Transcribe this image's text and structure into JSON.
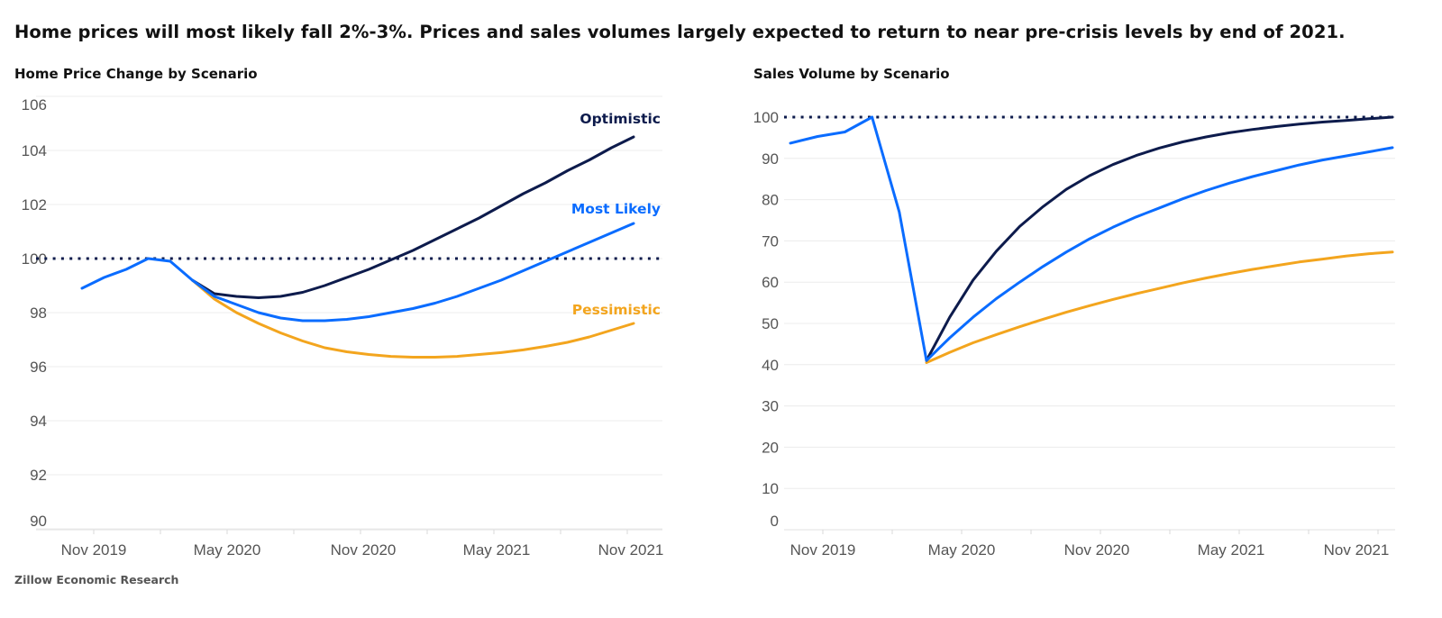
{
  "headline": "Home prices will most likely fall 2%-3%. Prices and sales volumes largely expected to return to near pre-crisis levels by end of 2021.",
  "footer": "Zillow Economic Research",
  "colors": {
    "optimistic": "#0d1b4c",
    "most_likely": "#0a6cff",
    "pessimistic": "#f3a51e",
    "reference_line": "#0d1b4c",
    "grid": "#ececec"
  },
  "chart_data": [
    {
      "type": "line",
      "title": "Home Price Change by Scenario",
      "xlabel": "",
      "ylabel": "",
      "ylim": [
        90,
        106
      ],
      "yticks": [
        "106",
        "104",
        "102",
        "100",
        "98",
        "96",
        "94",
        "92",
        "90"
      ],
      "xticks": [
        "Nov 2019",
        "May 2020",
        "Nov 2020",
        "May 2021",
        "Nov 2021"
      ],
      "grid": true,
      "reference_line": 100,
      "legend": "inline-right",
      "x": [
        "Oct 2019",
        "Nov 2019",
        "Dec 2019",
        "Jan 2020",
        "Feb 2020",
        "Mar 2020",
        "Apr 2020",
        "May 2020",
        "Jun 2020",
        "Jul 2020",
        "Aug 2020",
        "Sep 2020",
        "Oct 2020",
        "Nov 2020",
        "Dec 2020",
        "Jan 2021",
        "Feb 2021",
        "Mar 2021",
        "Apr 2021",
        "May 2021",
        "Jun 2021",
        "Jul 2021",
        "Aug 2021",
        "Sep 2021",
        "Oct 2021",
        "Nov 2021"
      ],
      "series": [
        {
          "name": "Optimistic",
          "color": "#0d1b4c",
          "values": [
            null,
            null,
            null,
            null,
            null,
            99.2,
            98.7,
            98.6,
            98.55,
            98.6,
            98.75,
            99.0,
            99.3,
            99.6,
            99.95,
            100.3,
            100.7,
            101.1,
            101.5,
            101.95,
            102.4,
            102.8,
            103.25,
            103.65,
            104.1,
            104.5
          ]
        },
        {
          "name": "Most Likely",
          "color": "#0a6cff",
          "values": [
            98.9,
            99.3,
            99.6,
            100.0,
            99.9,
            99.2,
            98.6,
            98.3,
            98.0,
            97.8,
            97.7,
            97.7,
            97.75,
            97.85,
            98.0,
            98.15,
            98.35,
            98.6,
            98.9,
            99.2,
            99.55,
            99.9,
            100.25,
            100.6,
            100.95,
            101.3
          ]
        },
        {
          "name": "Pessimistic",
          "color": "#f3a51e",
          "values": [
            null,
            null,
            null,
            null,
            null,
            99.2,
            98.5,
            98.0,
            97.6,
            97.25,
            96.95,
            96.7,
            96.55,
            96.45,
            96.38,
            96.35,
            96.35,
            96.38,
            96.45,
            96.52,
            96.62,
            96.75,
            96.9,
            97.1,
            97.35,
            97.6
          ]
        }
      ]
    },
    {
      "type": "line",
      "title": "Sales Volume by Scenario",
      "xlabel": "",
      "ylabel": "",
      "ylim": [
        0,
        100
      ],
      "yticks": [
        "100",
        "90",
        "80",
        "70",
        "60",
        "50",
        "40",
        "30",
        "20",
        "10",
        "0"
      ],
      "xticks": [
        "Nov 2019",
        "May 2020",
        "Nov 2020",
        "May 2021",
        "Nov 2021"
      ],
      "grid": true,
      "reference_line": 100,
      "x": [
        "Oct 2019",
        "Nov 2019",
        "Dec 2019",
        "Jan 2020",
        "Feb 2020",
        "Mar 2020",
        "Apr 2020",
        "May 2020",
        "Jun 2020",
        "Jul 2020",
        "Aug 2020",
        "Sep 2020",
        "Oct 2020",
        "Nov 2020",
        "Dec 2020",
        "Jan 2021",
        "Feb 2021",
        "Mar 2021",
        "Apr 2021",
        "May 2021",
        "Jun 2021",
        "Jul 2021",
        "Aug 2021",
        "Sep 2021",
        "Oct 2021",
        "Nov 2021"
      ],
      "series": [
        {
          "name": "Optimistic",
          "color": "#0d1b4c",
          "values": [
            null,
            null,
            null,
            null,
            null,
            41,
            51.5,
            60.5,
            67.5,
            73.5,
            78.3,
            82.5,
            85.8,
            88.5,
            90.7,
            92.5,
            94,
            95.2,
            96.2,
            97,
            97.7,
            98.3,
            98.8,
            99.2,
            99.6,
            100
          ]
        },
        {
          "name": "Most Likely",
          "color": "#0a6cff",
          "values": [
            93.7,
            95.3,
            96.4,
            100,
            77,
            41,
            46.5,
            51.5,
            56,
            60,
            63.8,
            67.3,
            70.5,
            73.3,
            75.8,
            78,
            80.2,
            82.2,
            84,
            85.6,
            87,
            88.4,
            89.6,
            90.6,
            91.6,
            92.6
          ]
        },
        {
          "name": "Pessimistic",
          "color": "#f3a51e",
          "values": [
            null,
            null,
            null,
            null,
            null,
            40.5,
            43,
            45.3,
            47.3,
            49.2,
            51,
            52.7,
            54.3,
            55.8,
            57.2,
            58.5,
            59.8,
            61,
            62.1,
            63.1,
            64,
            64.9,
            65.6,
            66.3,
            66.9,
            67.3
          ]
        }
      ]
    }
  ]
}
